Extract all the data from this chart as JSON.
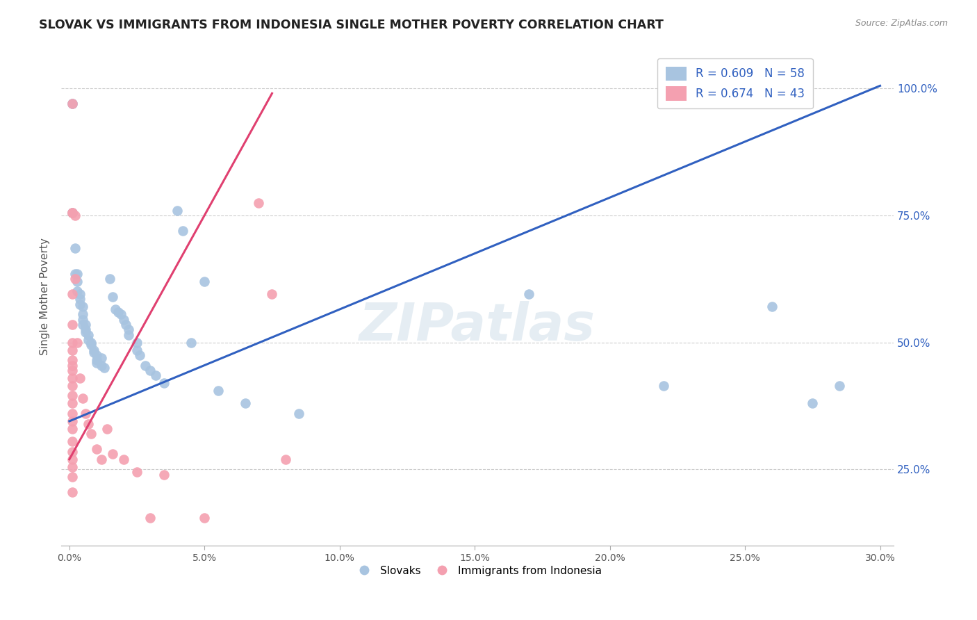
{
  "title": "SLOVAK VS IMMIGRANTS FROM INDONESIA SINGLE MOTHER POVERTY CORRELATION CHART",
  "source": "Source: ZipAtlas.com",
  "ylabel": "Single Mother Poverty",
  "watermark": "ZIPatlas",
  "legend_blue_label": "R = 0.609   N = 58",
  "legend_pink_label": "R = 0.674   N = 43",
  "legend_bottom_blue": "Slovaks",
  "legend_bottom_pink": "Immigrants from Indonesia",
  "blue_color": "#a8c4e0",
  "pink_color": "#f4a0b0",
  "blue_line_color": "#3060c0",
  "pink_line_color": "#e04070",
  "blue_scatter": [
    [
      0.001,
      0.97
    ],
    [
      0.001,
      0.97
    ],
    [
      0.001,
      0.755
    ],
    [
      0.001,
      0.755
    ],
    [
      0.002,
      0.685
    ],
    [
      0.002,
      0.635
    ],
    [
      0.003,
      0.635
    ],
    [
      0.003,
      0.62
    ],
    [
      0.003,
      0.6
    ],
    [
      0.004,
      0.595
    ],
    [
      0.004,
      0.585
    ],
    [
      0.004,
      0.575
    ],
    [
      0.005,
      0.57
    ],
    [
      0.005,
      0.555
    ],
    [
      0.005,
      0.545
    ],
    [
      0.005,
      0.535
    ],
    [
      0.006,
      0.535
    ],
    [
      0.006,
      0.525
    ],
    [
      0.006,
      0.52
    ],
    [
      0.007,
      0.515
    ],
    [
      0.007,
      0.505
    ],
    [
      0.008,
      0.5
    ],
    [
      0.008,
      0.495
    ],
    [
      0.009,
      0.485
    ],
    [
      0.009,
      0.48
    ],
    [
      0.01,
      0.475
    ],
    [
      0.01,
      0.465
    ],
    [
      0.01,
      0.46
    ],
    [
      0.012,
      0.47
    ],
    [
      0.012,
      0.455
    ],
    [
      0.013,
      0.45
    ],
    [
      0.015,
      0.625
    ],
    [
      0.016,
      0.59
    ],
    [
      0.017,
      0.565
    ],
    [
      0.018,
      0.56
    ],
    [
      0.019,
      0.555
    ],
    [
      0.02,
      0.545
    ],
    [
      0.021,
      0.535
    ],
    [
      0.022,
      0.525
    ],
    [
      0.022,
      0.515
    ],
    [
      0.025,
      0.5
    ],
    [
      0.025,
      0.485
    ],
    [
      0.026,
      0.475
    ],
    [
      0.028,
      0.455
    ],
    [
      0.03,
      0.445
    ],
    [
      0.032,
      0.435
    ],
    [
      0.035,
      0.42
    ],
    [
      0.04,
      0.76
    ],
    [
      0.042,
      0.72
    ],
    [
      0.045,
      0.5
    ],
    [
      0.05,
      0.62
    ],
    [
      0.055,
      0.405
    ],
    [
      0.065,
      0.38
    ],
    [
      0.085,
      0.36
    ],
    [
      0.17,
      0.595
    ],
    [
      0.22,
      0.415
    ],
    [
      0.26,
      0.57
    ],
    [
      0.275,
      0.38
    ],
    [
      0.285,
      0.415
    ]
  ],
  "pink_scatter": [
    [
      0.001,
      0.97
    ],
    [
      0.001,
      0.755
    ],
    [
      0.001,
      0.755
    ],
    [
      0.001,
      0.595
    ],
    [
      0.001,
      0.535
    ],
    [
      0.001,
      0.5
    ],
    [
      0.001,
      0.485
    ],
    [
      0.001,
      0.465
    ],
    [
      0.001,
      0.455
    ],
    [
      0.001,
      0.445
    ],
    [
      0.001,
      0.43
    ],
    [
      0.001,
      0.415
    ],
    [
      0.001,
      0.395
    ],
    [
      0.001,
      0.38
    ],
    [
      0.001,
      0.36
    ],
    [
      0.001,
      0.345
    ],
    [
      0.001,
      0.33
    ],
    [
      0.001,
      0.305
    ],
    [
      0.001,
      0.285
    ],
    [
      0.001,
      0.27
    ],
    [
      0.001,
      0.255
    ],
    [
      0.001,
      0.235
    ],
    [
      0.001,
      0.205
    ],
    [
      0.002,
      0.75
    ],
    [
      0.002,
      0.625
    ],
    [
      0.003,
      0.5
    ],
    [
      0.004,
      0.43
    ],
    [
      0.005,
      0.39
    ],
    [
      0.006,
      0.36
    ],
    [
      0.007,
      0.34
    ],
    [
      0.008,
      0.32
    ],
    [
      0.01,
      0.29
    ],
    [
      0.012,
      0.27
    ],
    [
      0.014,
      0.33
    ],
    [
      0.016,
      0.28
    ],
    [
      0.02,
      0.27
    ],
    [
      0.025,
      0.245
    ],
    [
      0.03,
      0.155
    ],
    [
      0.035,
      0.24
    ],
    [
      0.05,
      0.155
    ],
    [
      0.07,
      0.775
    ],
    [
      0.075,
      0.595
    ],
    [
      0.08,
      0.27
    ]
  ],
  "blue_line_x": [
    0.0,
    0.3
  ],
  "blue_line_y": [
    0.345,
    1.005
  ],
  "pink_line_x": [
    0.0,
    0.075
  ],
  "pink_line_y": [
    0.27,
    0.99
  ],
  "xlim": [
    -0.003,
    0.305
  ],
  "ylim": [
    0.1,
    1.08
  ],
  "xtick_positions": [
    0.0,
    0.05,
    0.1,
    0.15,
    0.2,
    0.25,
    0.3
  ],
  "ytick_positions": [
    0.25,
    0.5,
    0.75,
    1.0
  ],
  "ytick_labels": [
    "25.0%",
    "50.0%",
    "75.0%",
    "100.0%"
  ],
  "figsize": [
    14.06,
    8.92
  ],
  "dpi": 100
}
